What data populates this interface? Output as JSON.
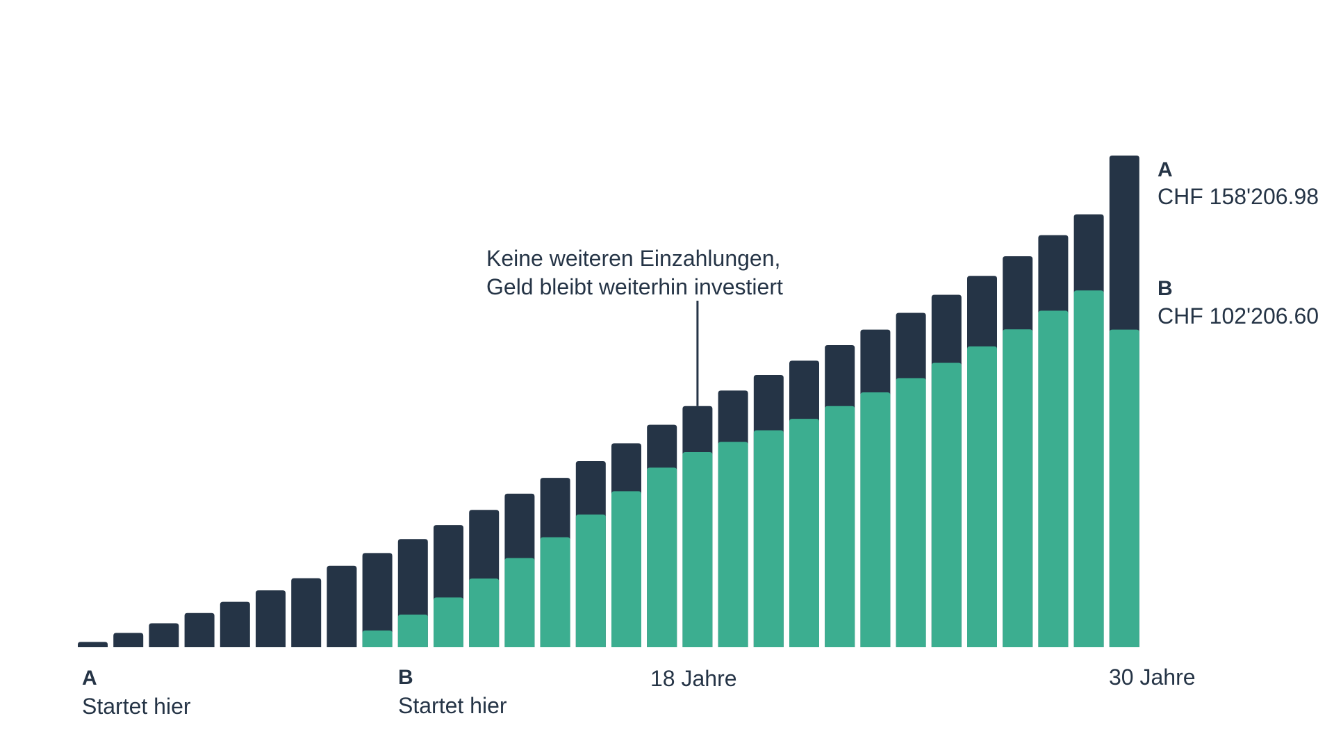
{
  "colors": {
    "series_a": "#253446",
    "series_b": "#3cae90",
    "text": "#253446",
    "background": "#ffffff"
  },
  "chart_data": {
    "type": "bar",
    "stacked": false,
    "overlapping": true,
    "x": [
      1,
      2,
      3,
      4,
      5,
      6,
      7,
      8,
      9,
      10,
      11,
      12,
      13,
      14,
      15,
      16,
      17,
      18,
      19,
      20,
      21,
      22,
      23,
      24,
      25,
      26,
      27,
      28,
      29,
      30
    ],
    "x_tick_labels": {
      "18": "18 Jahre",
      "30": "30 Jahre"
    },
    "series": [
      {
        "name": "A",
        "color": "#253446",
        "values": [
          1700,
          4600,
          7700,
          11000,
          14600,
          18300,
          22200,
          26200,
          30300,
          34800,
          39300,
          44200,
          49400,
          54500,
          59900,
          65600,
          71600,
          77600,
          82600,
          87600,
          92200,
          97200,
          102200,
          107600,
          113400,
          119500,
          125800,
          132600,
          139300,
          158206.98
        ]
      },
      {
        "name": "B",
        "color": "#3cae90",
        "values": [
          0,
          0,
          0,
          0,
          0,
          0,
          0,
          0,
          5400,
          10500,
          16000,
          22100,
          28700,
          35400,
          42700,
          50200,
          57800,
          62800,
          66100,
          69800,
          73500,
          77600,
          82000,
          86600,
          91500,
          96800,
          102300,
          108300,
          114800,
          102206.6
        ]
      }
    ],
    "final_values": {
      "a_letter": "A",
      "a_value": "CHF 158'206.98",
      "b_letter": "B",
      "b_value": "CHF 102'206.60"
    },
    "start_labels": {
      "a_letter": "A",
      "a_text": "Startet hier",
      "b_letter": "B",
      "b_text": "Startet hier"
    },
    "annotation": {
      "line1": "Keine weiteren Einzahlungen,",
      "line2": "Geld bleibt weiterhin investiert",
      "at_x": 18
    },
    "ylim": [
      0,
      160000
    ],
    "grid": false,
    "legend": "none"
  }
}
